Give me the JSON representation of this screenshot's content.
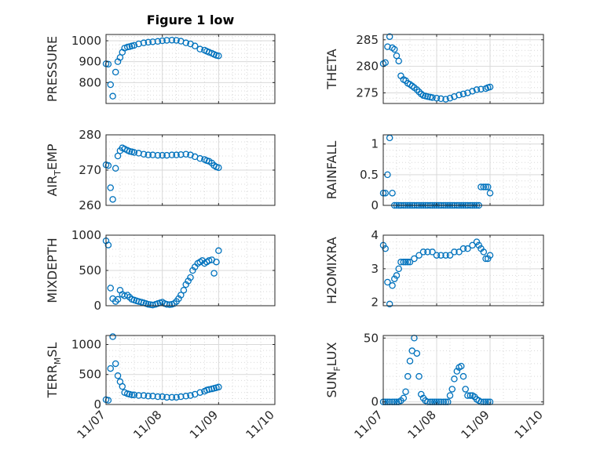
{
  "chart_data": [
    {
      "type": "scatter",
      "title": "Figure 1 low",
      "ylabel": "PRESSURE",
      "ylim": [
        700,
        1030
      ],
      "yticks": [
        800,
        900,
        1000
      ],
      "xticks": [
        "11/07",
        "11/08",
        "11/09",
        "11/10"
      ],
      "x": [
        0.0,
        0.04,
        0.08,
        0.12,
        0.17,
        0.21,
        0.25,
        0.29,
        0.33,
        0.38,
        0.42,
        0.46,
        0.5,
        0.58,
        0.67,
        0.75,
        0.83,
        0.92,
        1.0,
        1.08,
        1.17,
        1.25,
        1.33,
        1.42,
        1.5,
        1.58,
        1.67,
        1.75,
        1.79,
        1.83,
        1.88,
        1.92,
        1.96,
        2.0
      ],
      "y": [
        890,
        888,
        790,
        735,
        850,
        900,
        920,
        945,
        965,
        970,
        972,
        975,
        978,
        985,
        990,
        993,
        995,
        997,
        1000,
        1002,
        1003,
        1002,
        998,
        990,
        985,
        975,
        960,
        955,
        950,
        945,
        940,
        935,
        930,
        928
      ]
    },
    {
      "type": "scatter",
      "ylabel": "THETA",
      "ylim": [
        273,
        286
      ],
      "yticks": [
        275,
        280,
        285
      ],
      "xticks": [
        "11/07",
        "11/08",
        "11/09",
        "11/10"
      ],
      "x": [
        0.0,
        0.04,
        0.08,
        0.12,
        0.17,
        0.21,
        0.25,
        0.29,
        0.33,
        0.38,
        0.42,
        0.46,
        0.5,
        0.54,
        0.58,
        0.63,
        0.67,
        0.71,
        0.75,
        0.79,
        0.83,
        0.88,
        0.92,
        1.0,
        1.08,
        1.17,
        1.25,
        1.33,
        1.42,
        1.5,
        1.58,
        1.67,
        1.75,
        1.83,
        1.92,
        1.96,
        2.0
      ],
      "y": [
        280.5,
        280.7,
        283.7,
        285.6,
        283.5,
        283.2,
        282.0,
        281.0,
        278.2,
        277.5,
        277.3,
        276.8,
        276.6,
        276.3,
        276.0,
        275.6,
        275.2,
        274.8,
        274.5,
        274.4,
        274.3,
        274.2,
        274.1,
        274.0,
        273.9,
        273.8,
        274.0,
        274.3,
        274.6,
        274.8,
        275.0,
        275.3,
        275.6,
        275.7,
        275.8,
        276.0,
        276.1
      ]
    },
    {
      "type": "scatter",
      "ylabel": "AIR_TEMP",
      "ylim": [
        260,
        280
      ],
      "yticks": [
        260,
        270,
        280
      ],
      "xticks": [
        "11/07",
        "11/08",
        "11/09",
        "11/10"
      ],
      "x": [
        0.0,
        0.04,
        0.08,
        0.12,
        0.17,
        0.21,
        0.25,
        0.29,
        0.33,
        0.38,
        0.42,
        0.46,
        0.5,
        0.58,
        0.67,
        0.75,
        0.83,
        0.92,
        1.0,
        1.08,
        1.17,
        1.25,
        1.33,
        1.42,
        1.5,
        1.58,
        1.67,
        1.75,
        1.79,
        1.83,
        1.88,
        1.92,
        1.96,
        2.0
      ],
      "y": [
        271.5,
        271.3,
        265.0,
        261.7,
        270.5,
        274.0,
        275.5,
        276.3,
        276.0,
        275.6,
        275.3,
        275.2,
        275.0,
        274.8,
        274.5,
        274.3,
        274.3,
        274.2,
        274.2,
        274.2,
        274.3,
        274.3,
        274.4,
        274.5,
        274.3,
        273.8,
        273.3,
        273.0,
        272.7,
        272.5,
        272.0,
        271.3,
        270.9,
        270.7
      ]
    },
    {
      "type": "scatter",
      "ylabel": "RAINFALL",
      "ylim": [
        0,
        1.15
      ],
      "yticks": [
        0,
        0.5,
        1
      ],
      "xticks": [
        "11/07",
        "11/08",
        "11/09",
        "11/10"
      ],
      "x": [
        0.0,
        0.04,
        0.08,
        0.12,
        0.17,
        0.21,
        0.25,
        0.29,
        0.33,
        0.38,
        0.42,
        0.46,
        0.5,
        0.54,
        0.58,
        0.63,
        0.67,
        0.71,
        0.75,
        0.79,
        0.83,
        0.88,
        0.92,
        0.96,
        1.0,
        1.04,
        1.08,
        1.13,
        1.17,
        1.21,
        1.25,
        1.29,
        1.33,
        1.38,
        1.42,
        1.46,
        1.5,
        1.54,
        1.58,
        1.63,
        1.67,
        1.71,
        1.75,
        1.79,
        1.83,
        1.88,
        1.92,
        1.96,
        2.0
      ],
      "y": [
        0.2,
        0.2,
        0.5,
        1.1,
        0.2,
        0.0,
        0.0,
        0.0,
        0.0,
        0.0,
        0.0,
        0.0,
        0.0,
        0.0,
        0.0,
        0.0,
        0.0,
        0.0,
        0.0,
        0.0,
        0.0,
        0.0,
        0.0,
        0.0,
        0.0,
        0.0,
        0.0,
        0.0,
        0.0,
        0.0,
        0.0,
        0.0,
        0.0,
        0.0,
        0.0,
        0.0,
        0.0,
        0.0,
        0.0,
        0.0,
        0.0,
        0.0,
        0.0,
        0.0,
        0.3,
        0.3,
        0.3,
        0.3,
        0.2
      ]
    },
    {
      "type": "scatter",
      "ylabel": "MIXDEPTH",
      "ylim": [
        0,
        1000
      ],
      "yticks": [
        0,
        500,
        1000
      ],
      "xticks": [
        "11/07",
        "11/08",
        "11/09",
        "11/10"
      ],
      "x": [
        0.0,
        0.04,
        0.08,
        0.12,
        0.17,
        0.21,
        0.25,
        0.29,
        0.33,
        0.38,
        0.42,
        0.46,
        0.5,
        0.54,
        0.58,
        0.63,
        0.67,
        0.71,
        0.75,
        0.79,
        0.83,
        0.88,
        0.92,
        0.96,
        1.0,
        1.04,
        1.08,
        1.13,
        1.17,
        1.21,
        1.25,
        1.29,
        1.33,
        1.38,
        1.42,
        1.46,
        1.5,
        1.54,
        1.58,
        1.63,
        1.67,
        1.71,
        1.75,
        1.79,
        1.83,
        1.88,
        1.92,
        1.96,
        2.0
      ],
      "y": [
        920,
        860,
        250,
        100,
        60,
        90,
        220,
        160,
        140,
        150,
        120,
        90,
        80,
        70,
        60,
        50,
        40,
        30,
        20,
        15,
        10,
        20,
        30,
        40,
        50,
        30,
        20,
        15,
        20,
        30,
        60,
        100,
        150,
        220,
        300,
        350,
        400,
        500,
        550,
        600,
        620,
        640,
        600,
        620,
        640,
        650,
        460,
        620,
        780
      ]
    },
    {
      "type": "scatter",
      "ylabel": "H2OMIXRA",
      "ylim": [
        1.9,
        4.0
      ],
      "yticks": [
        2,
        3,
        4
      ],
      "xticks": [
        "11/07",
        "11/08",
        "11/09",
        "11/10"
      ],
      "x": [
        0.0,
        0.04,
        0.08,
        0.12,
        0.17,
        0.21,
        0.25,
        0.29,
        0.33,
        0.38,
        0.42,
        0.46,
        0.5,
        0.58,
        0.67,
        0.75,
        0.83,
        0.92,
        1.0,
        1.08,
        1.17,
        1.25,
        1.33,
        1.42,
        1.5,
        1.58,
        1.67,
        1.75,
        1.79,
        1.83,
        1.88,
        1.92,
        1.96,
        2.0
      ],
      "y": [
        3.7,
        3.6,
        2.6,
        1.95,
        2.5,
        2.7,
        2.8,
        3.0,
        3.2,
        3.2,
        3.2,
        3.2,
        3.2,
        3.3,
        3.4,
        3.5,
        3.5,
        3.5,
        3.4,
        3.4,
        3.4,
        3.4,
        3.5,
        3.5,
        3.6,
        3.6,
        3.7,
        3.8,
        3.7,
        3.6,
        3.5,
        3.3,
        3.3,
        3.4
      ]
    },
    {
      "type": "scatter",
      "ylabel": "TERR_MSL",
      "ylim": [
        0,
        1150
      ],
      "yticks": [
        0,
        500,
        1000
      ],
      "xticks": [
        "11/07",
        "11/08",
        "11/09",
        "11/10"
      ],
      "x": [
        0.0,
        0.04,
        0.08,
        0.12,
        0.17,
        0.21,
        0.25,
        0.29,
        0.33,
        0.38,
        0.42,
        0.46,
        0.5,
        0.58,
        0.67,
        0.75,
        0.83,
        0.92,
        1.0,
        1.08,
        1.17,
        1.25,
        1.33,
        1.42,
        1.5,
        1.58,
        1.67,
        1.75,
        1.79,
        1.83,
        1.88,
        1.92,
        1.96,
        2.0
      ],
      "y": [
        80,
        70,
        600,
        1130,
        680,
        480,
        380,
        300,
        200,
        180,
        170,
        160,
        160,
        150,
        150,
        140,
        140,
        130,
        130,
        120,
        120,
        120,
        130,
        140,
        150,
        170,
        200,
        220,
        240,
        250,
        260,
        270,
        280,
        290
      ]
    },
    {
      "type": "scatter",
      "ylabel": "SUN_FLUX",
      "ylim": [
        -2,
        52
      ],
      "yticks": [
        0,
        50
      ],
      "xticks": [
        "11/07",
        "11/08",
        "11/09",
        "11/10"
      ],
      "x": [
        0.0,
        0.04,
        0.08,
        0.12,
        0.17,
        0.21,
        0.25,
        0.29,
        0.33,
        0.38,
        0.42,
        0.46,
        0.5,
        0.54,
        0.58,
        0.63,
        0.67,
        0.71,
        0.75,
        0.79,
        0.83,
        0.88,
        0.92,
        0.96,
        1.0,
        1.04,
        1.08,
        1.13,
        1.17,
        1.21,
        1.25,
        1.29,
        1.33,
        1.38,
        1.42,
        1.46,
        1.5,
        1.54,
        1.58,
        1.63,
        1.67,
        1.71,
        1.75,
        1.79,
        1.83,
        1.88,
        1.92,
        1.96,
        2.0
      ],
      "y": [
        0,
        0,
        0,
        0,
        0,
        0,
        0,
        0,
        1,
        3,
        8,
        20,
        32,
        40,
        50,
        38,
        20,
        6,
        3,
        1,
        0,
        0,
        0,
        0,
        0,
        0,
        0,
        0,
        0,
        0,
        5,
        10,
        18,
        24,
        27,
        28,
        20,
        10,
        5,
        5,
        5,
        4,
        2,
        1,
        0,
        0,
        0,
        0,
        0
      ]
    }
  ]
}
